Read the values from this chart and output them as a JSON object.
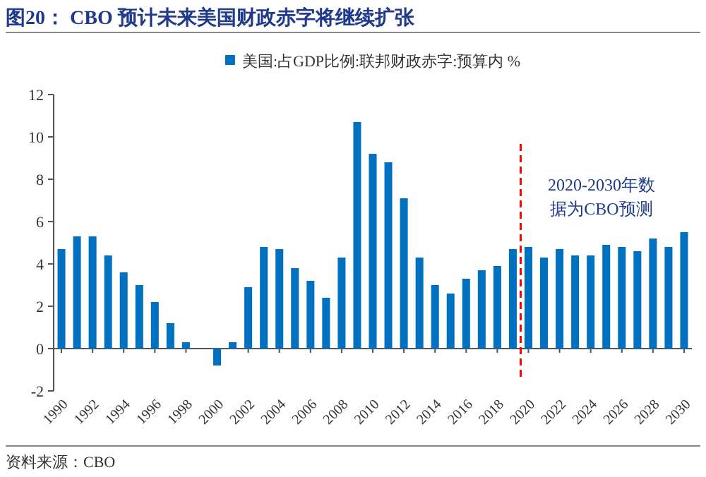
{
  "chart_data": {
    "type": "bar",
    "title": "图20：  CBO 预计未来美国财政赤字将继续扩张",
    "x": [
      1990,
      1991,
      1992,
      1993,
      1994,
      1995,
      1996,
      1997,
      1998,
      1999,
      2000,
      2001,
      2002,
      2003,
      2004,
      2005,
      2006,
      2007,
      2008,
      2009,
      2010,
      2011,
      2012,
      2013,
      2014,
      2015,
      2016,
      2017,
      2018,
      2019,
      2020,
      2021,
      2022,
      2023,
      2024,
      2025,
      2026,
      2027,
      2028,
      2029,
      2030
    ],
    "series": [
      {
        "name": "美国:占GDP比例:联邦财政赤字:预算内 %",
        "color": "#0070c0",
        "values": [
          4.7,
          5.3,
          5.3,
          4.4,
          3.6,
          3.0,
          2.2,
          1.2,
          0.3,
          0.0,
          -0.8,
          0.3,
          2.9,
          4.8,
          4.7,
          3.8,
          3.2,
          2.4,
          4.3,
          10.7,
          9.2,
          8.8,
          7.1,
          4.3,
          3.0,
          2.6,
          3.3,
          3.7,
          3.9,
          4.7,
          4.8,
          4.3,
          4.7,
          4.4,
          4.4,
          4.9,
          4.8,
          4.6,
          5.2,
          4.8,
          5.5
        ]
      }
    ],
    "xlim": [
      1989.5,
      2030.5
    ],
    "xticks": [
      1990,
      1992,
      1994,
      1996,
      1998,
      2000,
      2002,
      2004,
      2006,
      2008,
      2010,
      2012,
      2014,
      2016,
      2018,
      2020,
      2022,
      2024,
      2026,
      2028,
      2030
    ],
    "ylim": [
      -2,
      12
    ],
    "yticks": [
      -2,
      0,
      2,
      4,
      6,
      8,
      10,
      12
    ],
    "ref_lines": [
      {
        "axis": "x",
        "value": 2019.5,
        "color": "#ff0000",
        "line_style": "dashed"
      }
    ],
    "annotations": [
      "2020-2030年数据为CBO预测",
      "资料来源：CBO"
    ],
    "legend": "top"
  }
}
